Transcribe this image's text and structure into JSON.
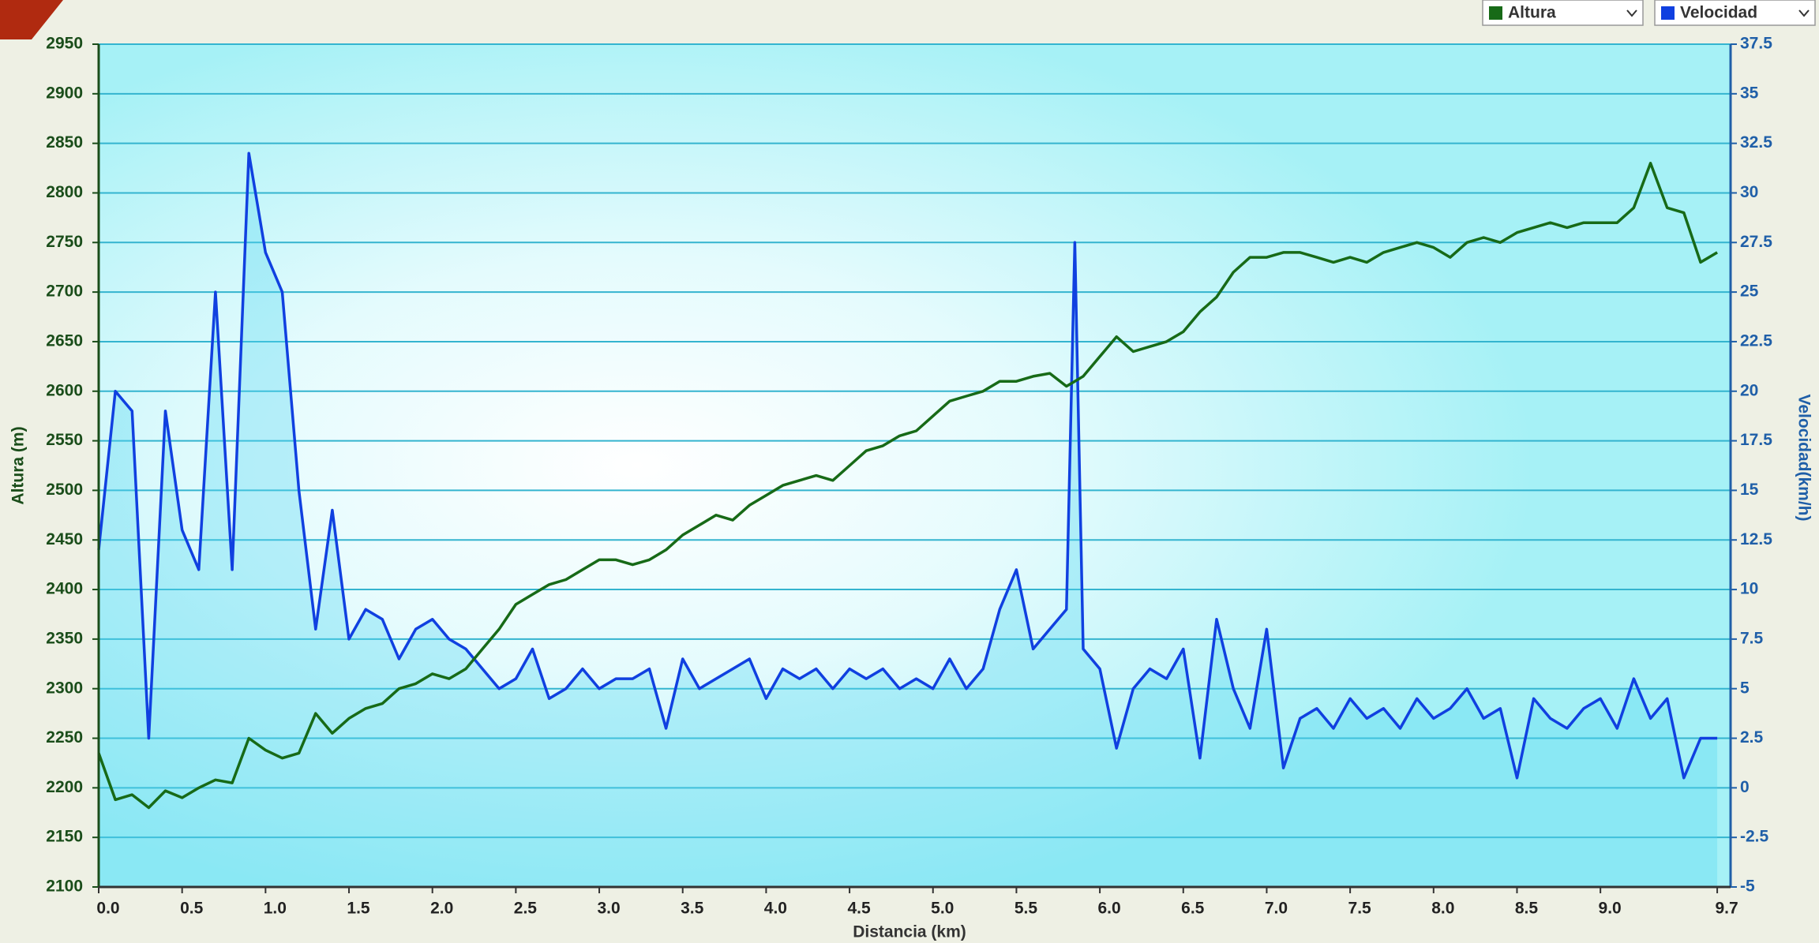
{
  "chart_data": {
    "type": "line",
    "xlabel": "Distancia (km)",
    "ylabel": "Altura (m)",
    "y2label": "Velocidad(km/h)",
    "legend": "top-right",
    "grid": true,
    "xlim": [
      0,
      9.78
    ],
    "xticks": [
      {
        "value": 0,
        "label": "0.0"
      },
      0.5,
      {
        "value": 1,
        "label": "1.0"
      },
      1.5,
      {
        "value": 2,
        "label": "2.0"
      },
      2.5,
      {
        "value": 3,
        "label": "3.0"
      },
      3.5,
      {
        "value": 4,
        "label": "4.0"
      },
      4.5,
      {
        "value": 5,
        "label": "5.0"
      },
      5.5,
      {
        "value": 6,
        "label": "6.0"
      },
      6.5,
      {
        "value": 7,
        "label": "7.0"
      },
      7.5,
      {
        "value": 8,
        "label": "8.0"
      },
      8.5,
      {
        "value": 9,
        "label": "9.0"
      },
      9.7
    ],
    "ylim": [
      2100,
      2950
    ],
    "yticks": [
      2100,
      2150,
      2200,
      2250,
      2300,
      2350,
      2400,
      2450,
      2500,
      2550,
      2600,
      2650,
      2700,
      2750,
      2800,
      2850,
      2900,
      2950
    ],
    "y2lim": [
      -5,
      37.5
    ],
    "y2ticks": [
      -5,
      -2.5,
      0,
      2.5,
      5,
      7.5,
      10,
      12.5,
      15,
      17.5,
      20,
      22.5,
      25,
      27.5,
      30,
      32.5,
      35,
      37.5
    ],
    "x": [
      0,
      0.1,
      0.2,
      0.3,
      0.4,
      0.5,
      0.6,
      0.7,
      0.8,
      0.9,
      1.0,
      1.1,
      1.2,
      1.3,
      1.4,
      1.5,
      1.6,
      1.7,
      1.8,
      1.9,
      2.0,
      2.1,
      2.2,
      2.3,
      2.4,
      2.5,
      2.6,
      2.7,
      2.8,
      2.9,
      3.0,
      3.1,
      3.2,
      3.3,
      3.4,
      3.5,
      3.6,
      3.7,
      3.8,
      3.9,
      4.0,
      4.1,
      4.2,
      4.3,
      4.4,
      4.5,
      4.6,
      4.7,
      4.8,
      4.9,
      5.0,
      5.1,
      5.2,
      5.3,
      5.4,
      5.5,
      5.6,
      5.7,
      5.8,
      5.85,
      5.9,
      6.0,
      6.1,
      6.2,
      6.3,
      6.4,
      6.5,
      6.6,
      6.7,
      6.8,
      6.9,
      7.0,
      7.1,
      7.2,
      7.3,
      7.4,
      7.5,
      7.6,
      7.7,
      7.8,
      7.9,
      8.0,
      8.1,
      8.2,
      8.3,
      8.4,
      8.5,
      8.6,
      8.7,
      8.8,
      8.9,
      9.0,
      9.1,
      9.2,
      9.3,
      9.4,
      9.5,
      9.6,
      9.7
    ],
    "series": [
      {
        "name": "Altura",
        "color": "#176a17",
        "values": [
          2235,
          2188,
          2193,
          2180,
          2197,
          2190,
          2200,
          2208,
          2205,
          2250,
          2238,
          2230,
          2235,
          2275,
          2255,
          2270,
          2280,
          2285,
          2300,
          2305,
          2315,
          2310,
          2320,
          2340,
          2360,
          2385,
          2395,
          2405,
          2410,
          2420,
          2430,
          2430,
          2425,
          2430,
          2440,
          2455,
          2465,
          2475,
          2470,
          2485,
          2495,
          2505,
          2510,
          2515,
          2510,
          2525,
          2540,
          2545,
          2555,
          2560,
          2575,
          2590,
          2595,
          2600,
          2610,
          2610,
          2615,
          2618,
          2605,
          2610,
          2615,
          2635,
          2655,
          2640,
          2645,
          2650,
          2660,
          2680,
          2695,
          2720,
          2735,
          2735,
          2740,
          2740,
          2735,
          2730,
          2735,
          2730,
          2740,
          2745,
          2750,
          2745,
          2735,
          2750,
          2755,
          2750,
          2760,
          2765,
          2770,
          2765,
          2770,
          2770,
          2770,
          2785,
          2830,
          2785,
          2780,
          2730,
          2740
        ]
      },
      {
        "name": "Velocidad",
        "color": "#1040e0",
        "axis": "y2",
        "values": [
          12,
          20,
          19,
          2.5,
          19,
          13,
          11,
          25,
          11,
          32,
          27,
          25,
          15,
          8,
          14,
          7.5,
          9,
          8.5,
          6.5,
          8,
          8.5,
          7.5,
          7,
          6,
          5,
          5.5,
          7,
          4.5,
          5,
          6,
          5,
          5.5,
          5.5,
          6,
          3,
          6.5,
          5,
          5.5,
          6,
          6.5,
          4.5,
          6,
          5.5,
          6,
          5,
          6,
          5.5,
          6,
          5,
          5.5,
          5,
          6.5,
          5,
          6,
          9,
          11,
          7,
          8,
          9,
          27.5,
          7,
          6,
          2,
          5,
          6,
          5.5,
          7,
          1.5,
          8.5,
          5,
          3,
          8,
          1,
          3.5,
          4,
          3,
          4.5,
          3.5,
          4,
          3,
          4.5,
          3.5,
          4,
          5,
          3.5,
          4,
          0.5,
          4.5,
          3.5,
          3,
          4,
          4.5,
          3,
          5.5,
          3.5,
          4.5,
          0.5,
          2.5,
          2.5
        ]
      }
    ]
  }
}
